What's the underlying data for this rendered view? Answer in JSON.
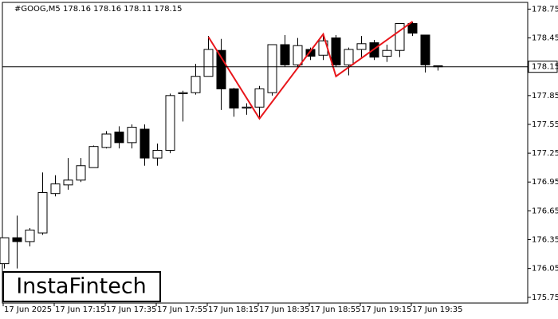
{
  "chart_data": {
    "type": "candlestick",
    "title": "#GOOG,M5  178.16 178.16 178.11 178.15",
    "watermark": "InstaFintech",
    "categories": [
      "17 Jun 2025",
      null,
      null,
      null,
      "17 Jun 17:15",
      null,
      null,
      null,
      "17 Jun 17:35",
      null,
      null,
      null,
      "17 Jun 17:55",
      null,
      null,
      null,
      "17 Jun 18:15",
      null,
      null,
      null,
      "17 Jun 18:35",
      null,
      null,
      null,
      "17 Jun 18:55",
      null,
      null,
      null,
      "17 Jun 19:15",
      null,
      null,
      null,
      "17 Jun 19:35",
      null,
      null
    ],
    "open": [
      176.1,
      176.37,
      176.33,
      176.42,
      176.83,
      176.92,
      176.97,
      177.1,
      177.31,
      177.47,
      177.36,
      177.5,
      177.2,
      177.28,
      177.87,
      177.88,
      178.05,
      178.32,
      177.92,
      177.72,
      177.73,
      177.88,
      178.38,
      178.17,
      178.33,
      178.27,
      178.45,
      178.17,
      178.33,
      178.4,
      178.26,
      178.32,
      178.6,
      178.48,
      178.16
    ],
    "high": [
      176.37,
      176.6,
      176.47,
      177.05,
      177.02,
      177.2,
      177.2,
      177.33,
      177.48,
      177.53,
      177.55,
      177.55,
      177.35,
      177.87,
      177.9,
      178.18,
      178.47,
      178.44,
      177.93,
      177.77,
      177.95,
      178.38,
      178.48,
      178.45,
      178.35,
      178.5,
      178.48,
      178.35,
      178.47,
      178.43,
      178.38,
      178.6,
      178.62,
      178.48,
      178.16
    ],
    "low": [
      176.05,
      176.05,
      176.28,
      176.4,
      176.8,
      176.87,
      176.95,
      177.1,
      177.3,
      177.3,
      177.3,
      177.12,
      177.12,
      177.25,
      177.58,
      177.86,
      178.05,
      177.7,
      177.63,
      177.65,
      177.62,
      177.85,
      178.15,
      178.15,
      178.22,
      178.22,
      178.15,
      178.06,
      178.25,
      178.22,
      178.2,
      178.25,
      178.47,
      178.09,
      178.11
    ],
    "close": [
      176.37,
      176.33,
      176.45,
      176.84,
      176.93,
      176.97,
      177.12,
      177.32,
      177.45,
      177.36,
      177.52,
      177.2,
      177.28,
      177.85,
      177.88,
      178.05,
      178.33,
      177.92,
      177.72,
      177.73,
      177.92,
      178.38,
      178.17,
      178.37,
      178.26,
      178.42,
      178.17,
      178.33,
      178.39,
      178.25,
      178.32,
      178.6,
      178.5,
      178.17,
      178.15
    ],
    "up_color": "#ffffff",
    "down_color": "#000000",
    "current_price": 178.15,
    "pattern": {
      "color": "#e8161b",
      "x": [
        16,
        20,
        25,
        26,
        32
      ],
      "values": [
        178.46,
        177.61,
        178.49,
        178.05,
        178.62
      ]
    },
    "ylim": [
      175.69,
      178.82
    ],
    "yticks": [
      178.75,
      178.45,
      177.85,
      177.55,
      177.25,
      176.95,
      176.65,
      176.35,
      176.05,
      175.75
    ]
  }
}
